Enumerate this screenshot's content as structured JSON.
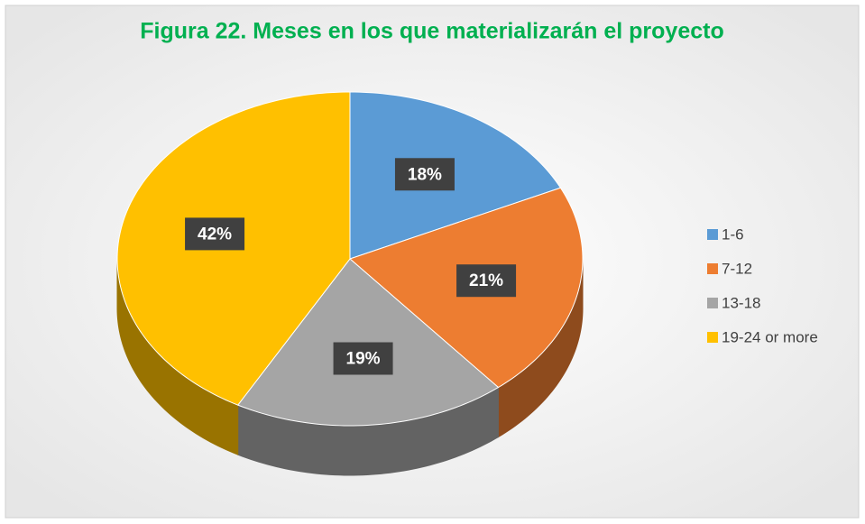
{
  "chart_data": {
    "type": "pie3d",
    "title": "Figura 22. Meses en los que materializarán el proyecto",
    "categories": [
      "1-6",
      "7-12",
      "13-18",
      "19-24 or more"
    ],
    "values": [
      18,
      21,
      19,
      42
    ],
    "value_labels": [
      "18%",
      "21%",
      "19%",
      "42%"
    ],
    "colors": [
      "#5b9bd5",
      "#ed7d31",
      "#a5a5a5",
      "#ffc000"
    ],
    "legend": "right"
  }
}
